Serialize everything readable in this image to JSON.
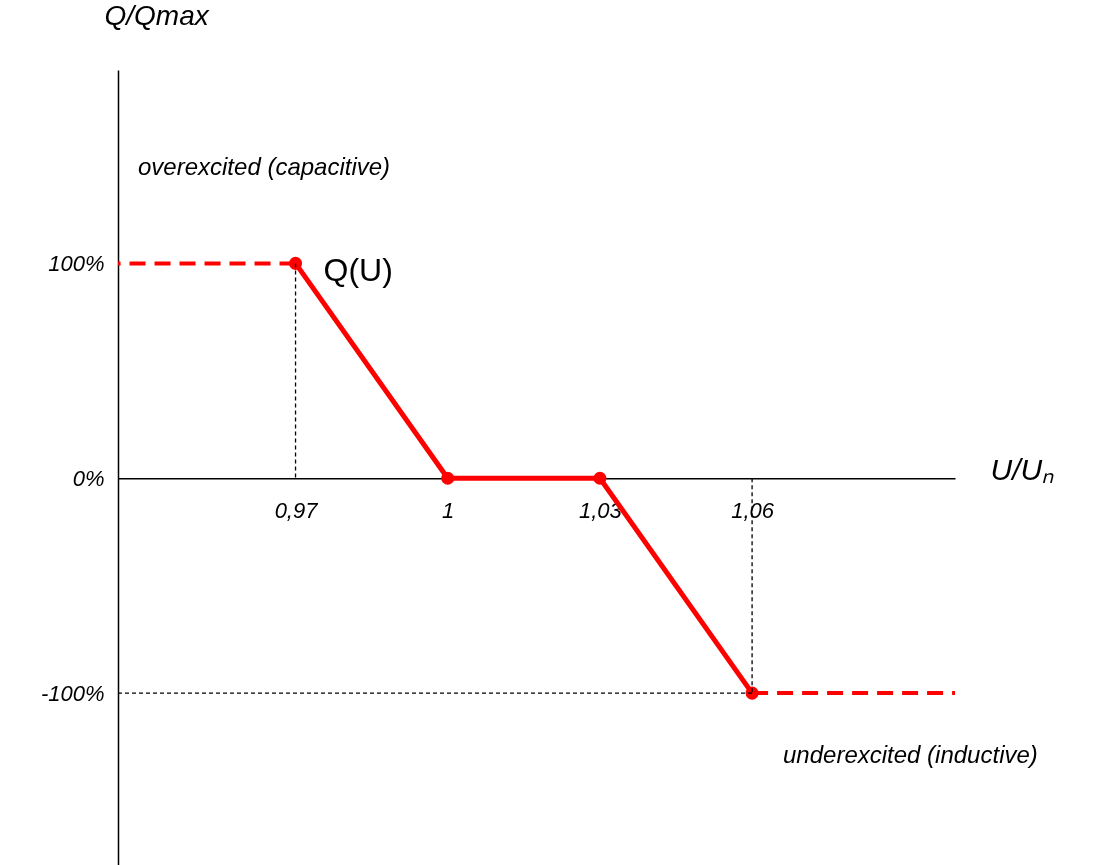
{
  "chart_data": {
    "type": "line",
    "xlabel": "U/Uₙ",
    "ylabel": "Q/Qmax",
    "xlim": [
      0.935,
      1.1
    ],
    "ylim": [
      -180,
      190
    ],
    "xticks": [
      {
        "value": 0.97,
        "label": "0,97"
      },
      1,
      {
        "value": 1.03,
        "label": "1,03"
      },
      {
        "value": 1.06,
        "label": "1,06"
      }
    ],
    "yticks": [
      {
        "value": -100,
        "label": "-100%"
      },
      {
        "value": 0,
        "label": "0%"
      },
      {
        "value": 100,
        "label": "100%"
      }
    ],
    "grid": false,
    "annotations": [
      "overexcited (capacitive)",
      "underexcited (inductive)"
    ],
    "series": [
      {
        "name": "Q(U)",
        "color": "#ff0000",
        "x": [
          0.97,
          1,
          1.03,
          1.06
        ],
        "values": [
          100,
          0,
          0,
          -100
        ],
        "marker": "circle",
        "line_style": "solid"
      },
      {
        "color": "#ff0000",
        "x": [
          0.97,
          0.935
        ],
        "values": [
          100,
          100
        ],
        "marker": "none",
        "line_style": "dashed"
      },
      {
        "color": "#ff0000",
        "x": [
          1.06,
          1.1
        ],
        "values": [
          -100,
          -100
        ],
        "marker": "none",
        "line_style": "dashed"
      },
      {
        "color": "#000000",
        "x": [
          0.97,
          0.97
        ],
        "values": [
          100,
          0
        ],
        "marker": "none",
        "line_style": "dotted"
      },
      {
        "color": "#000000",
        "x": [
          1.06,
          1.06
        ],
        "values": [
          0,
          -100
        ],
        "marker": "none",
        "line_style": "dotted"
      },
      {
        "color": "#000000",
        "x": [
          0.935,
          1.06
        ],
        "values": [
          -100,
          -100
        ],
        "marker": "none",
        "line_style": "dotted"
      }
    ]
  }
}
